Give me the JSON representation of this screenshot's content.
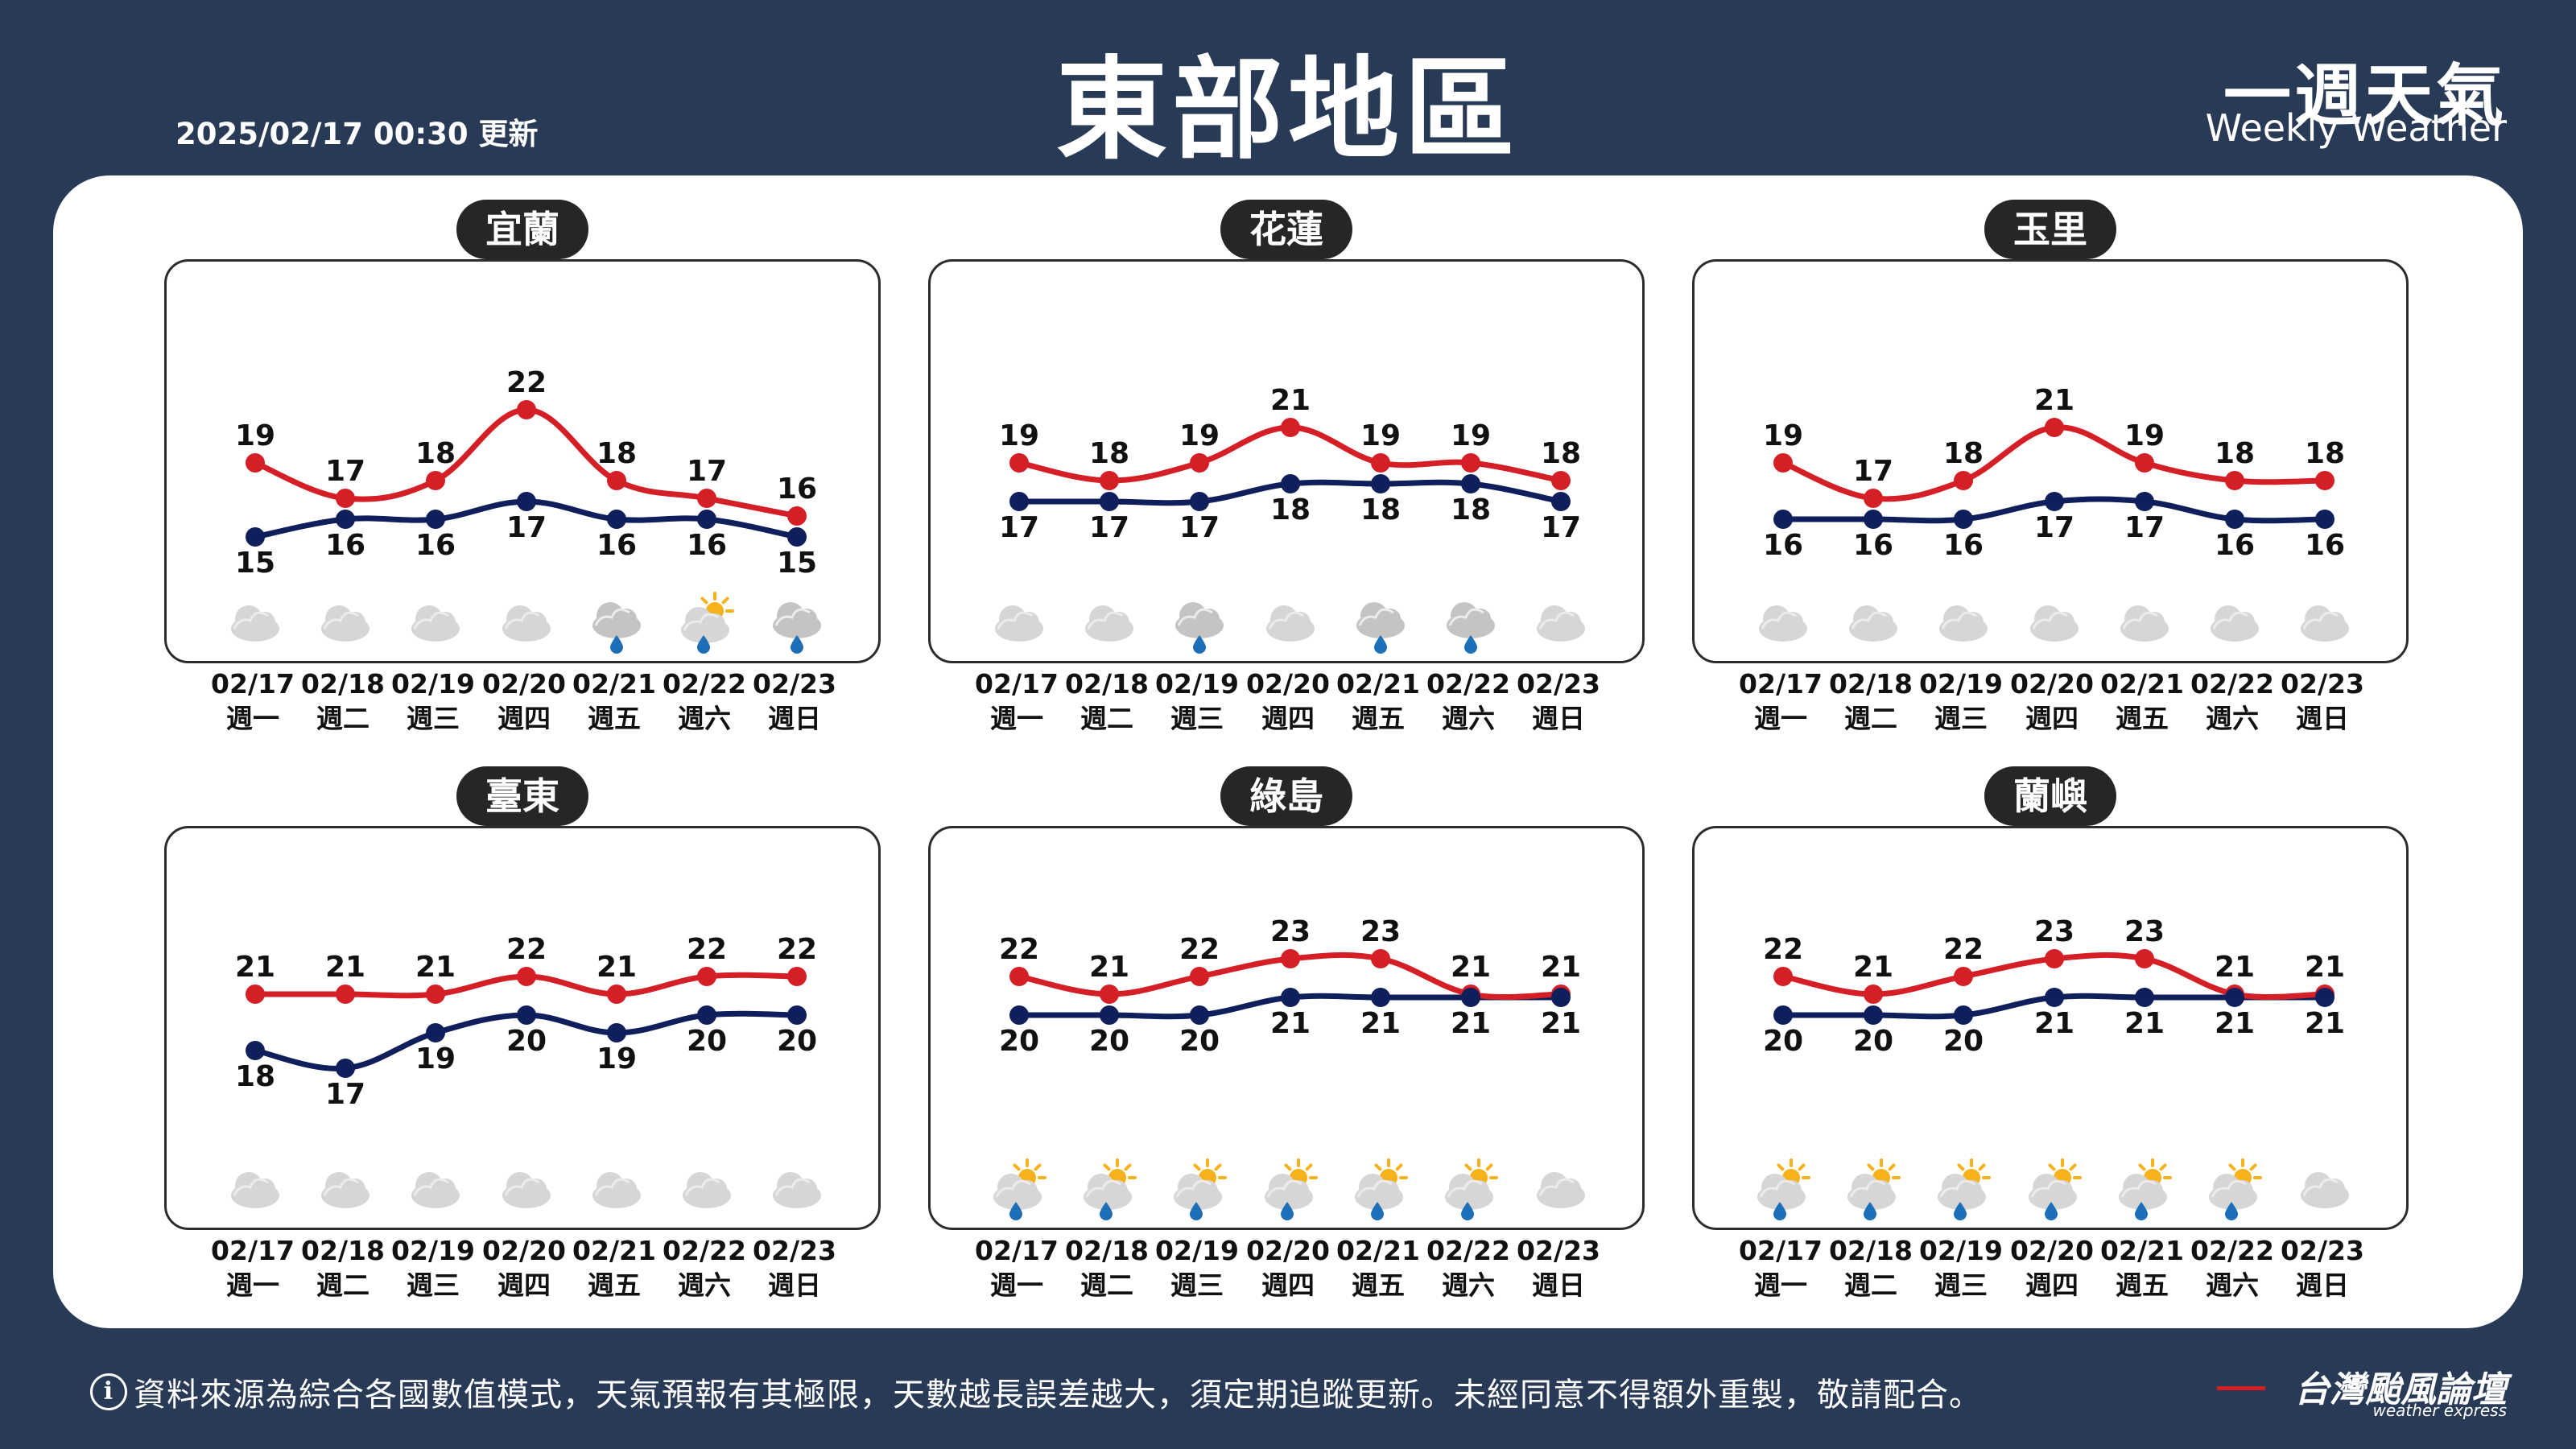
{
  "header": {
    "update_time": "2025/02/17 00:30 更新",
    "title": "東部地區",
    "brand_title": "一週天氣",
    "brand_subtitle": "Weekly Weather"
  },
  "colors": {
    "background": "#283a56",
    "max_line": "#d51f26",
    "min_line": "#0f1f5c",
    "pill": "#262626"
  },
  "days": [
    {
      "date": "02/17",
      "weekday": "週一"
    },
    {
      "date": "02/18",
      "weekday": "週二"
    },
    {
      "date": "02/19",
      "weekday": "週三"
    },
    {
      "date": "02/20",
      "weekday": "週四"
    },
    {
      "date": "02/21",
      "weekday": "週五"
    },
    {
      "date": "02/22",
      "weekday": "週六"
    },
    {
      "date": "02/23",
      "weekday": "週日"
    }
  ],
  "chart_data": [
    {
      "type": "line",
      "title": "宜蘭",
      "x": [
        "02/17",
        "02/18",
        "02/19",
        "02/20",
        "02/21",
        "02/22",
        "02/23"
      ],
      "series": [
        {
          "values": [
            19,
            17,
            18,
            22,
            18,
            17,
            16
          ],
          "color": "#d51f26"
        },
        {
          "values": [
            15,
            16,
            16,
            17,
            16,
            16,
            15
          ],
          "color": "#0f1f5c"
        }
      ],
      "icons": [
        "cloudy-icon",
        "cloudy-icon",
        "cloudy-icon",
        "cloudy-icon",
        "rain-icon",
        "sun-rain-icon",
        "rain-icon"
      ]
    },
    {
      "type": "line",
      "title": "花蓮",
      "x": [
        "02/17",
        "02/18",
        "02/19",
        "02/20",
        "02/21",
        "02/22",
        "02/23"
      ],
      "series": [
        {
          "values": [
            19,
            18,
            19,
            21,
            19,
            19,
            18
          ],
          "color": "#d51f26"
        },
        {
          "values": [
            17,
            17,
            17,
            18,
            18,
            18,
            17
          ],
          "color": "#0f1f5c"
        }
      ],
      "icons": [
        "cloudy-icon",
        "cloudy-icon",
        "rain-icon",
        "cloudy-icon",
        "rain-icon",
        "rain-icon",
        "cloudy-icon"
      ]
    },
    {
      "type": "line",
      "title": "玉里",
      "x": [
        "02/17",
        "02/18",
        "02/19",
        "02/20",
        "02/21",
        "02/22",
        "02/23"
      ],
      "series": [
        {
          "values": [
            19,
            17,
            18,
            21,
            19,
            18,
            18
          ],
          "color": "#d51f26"
        },
        {
          "values": [
            16,
            16,
            16,
            17,
            17,
            16,
            16
          ],
          "color": "#0f1f5c"
        }
      ],
      "icons": [
        "cloudy-icon",
        "cloudy-icon",
        "cloudy-icon",
        "cloudy-icon",
        "cloudy-icon",
        "cloudy-icon",
        "cloudy-icon"
      ]
    },
    {
      "type": "line",
      "title": "臺東",
      "x": [
        "02/17",
        "02/18",
        "02/19",
        "02/20",
        "02/21",
        "02/22",
        "02/23"
      ],
      "series": [
        {
          "values": [
            21,
            21,
            21,
            22,
            21,
            22,
            22
          ],
          "color": "#d51f26"
        },
        {
          "values": [
            18,
            17,
            19,
            20,
            19,
            20,
            20
          ],
          "color": "#0f1f5c"
        }
      ],
      "icons": [
        "cloudy-icon",
        "cloudy-icon",
        "cloudy-icon",
        "cloudy-icon",
        "cloudy-icon",
        "cloudy-icon",
        "cloudy-icon"
      ]
    },
    {
      "type": "line",
      "title": "綠島",
      "x": [
        "02/17",
        "02/18",
        "02/19",
        "02/20",
        "02/21",
        "02/22",
        "02/23"
      ],
      "series": [
        {
          "values": [
            22,
            21,
            22,
            23,
            23,
            21,
            21
          ],
          "color": "#d51f26"
        },
        {
          "values": [
            20,
            20,
            20,
            21,
            21,
            21,
            21
          ],
          "color": "#0f1f5c"
        }
      ],
      "icons": [
        "sun-rain-icon",
        "sun-rain-icon",
        "sun-rain-icon",
        "sun-rain-icon",
        "sun-rain-icon",
        "sun-rain-icon",
        "cloudy-icon"
      ]
    },
    {
      "type": "line",
      "title": "蘭嶼",
      "x": [
        "02/17",
        "02/18",
        "02/19",
        "02/20",
        "02/21",
        "02/22",
        "02/23"
      ],
      "series": [
        {
          "values": [
            22,
            21,
            22,
            23,
            23,
            21,
            21
          ],
          "color": "#d51f26"
        },
        {
          "values": [
            20,
            20,
            20,
            21,
            21,
            21,
            21
          ],
          "color": "#0f1f5c"
        }
      ],
      "icons": [
        "sun-rain-icon",
        "sun-rain-icon",
        "sun-rain-icon",
        "sun-rain-icon",
        "sun-rain-icon",
        "sun-rain-icon",
        "cloudy-icon"
      ]
    }
  ],
  "footer": {
    "disclaimer": "資料來源為綜合各國數值模式，天氣預報有其極限，天數越長誤差越大，須定期追蹤更新。未經同意不得額外重製，敬請配合。",
    "logo_text": "台灣颱風論壇",
    "logo_sub": "weather express"
  }
}
